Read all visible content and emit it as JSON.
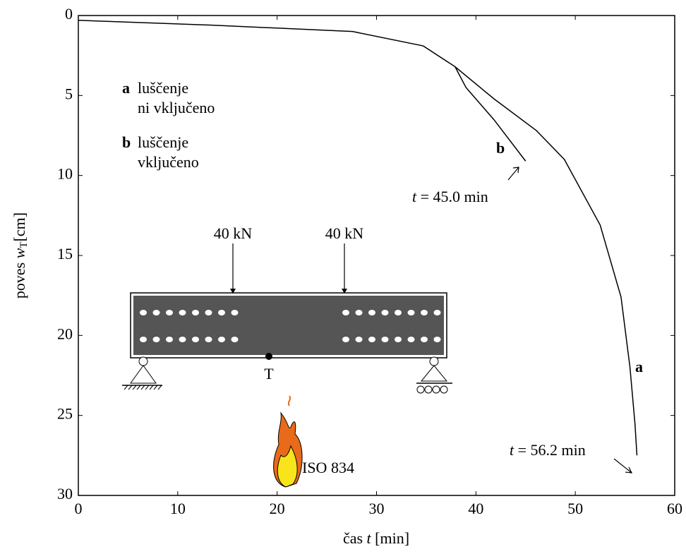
{
  "chart_data": {
    "type": "line",
    "xlabel": [
      "čas ",
      "t",
      "  [min]"
    ],
    "ylabel": [
      "poves ",
      "w",
      "T",
      "[cm]"
    ],
    "xlim": [
      0,
      60
    ],
    "xticks": [
      0,
      10,
      20,
      30,
      40,
      50,
      60
    ],
    "ylim": [
      0,
      30
    ],
    "yticks": [
      0,
      5,
      10,
      15,
      20,
      25,
      30
    ],
    "y_inverted": true,
    "series": [
      {
        "name": "a",
        "color": "#000000",
        "description": [
          "luščenje",
          "ni vključeno"
        ],
        "x": [
          0,
          13.4,
          27.6,
          34.7,
          37.9,
          41.8,
          46.1,
          48.9,
          52.5,
          54.6,
          55.5,
          56.0,
          56.2
        ],
        "values": [
          0.3,
          0.6,
          1.0,
          1.9,
          3.2,
          5.2,
          7.2,
          9.0,
          13.1,
          17.6,
          22,
          25.5,
          27.5
        ],
        "end_label": [
          "t",
          " = 56.2 min"
        ]
      },
      {
        "name": "b",
        "color": "#000000",
        "description": [
          "luščenje",
          "vključeno"
        ],
        "x": [
          37.9,
          39,
          41.8,
          45.0
        ],
        "values": [
          3.2,
          4.5,
          6.5,
          9.1
        ],
        "end_label": [
          "t",
          " = 45.0 min"
        ]
      }
    ],
    "diagram": {
      "loads": [
        "40 kN",
        "40 kN"
      ],
      "point": "T",
      "fire": "ISO 834"
    }
  }
}
